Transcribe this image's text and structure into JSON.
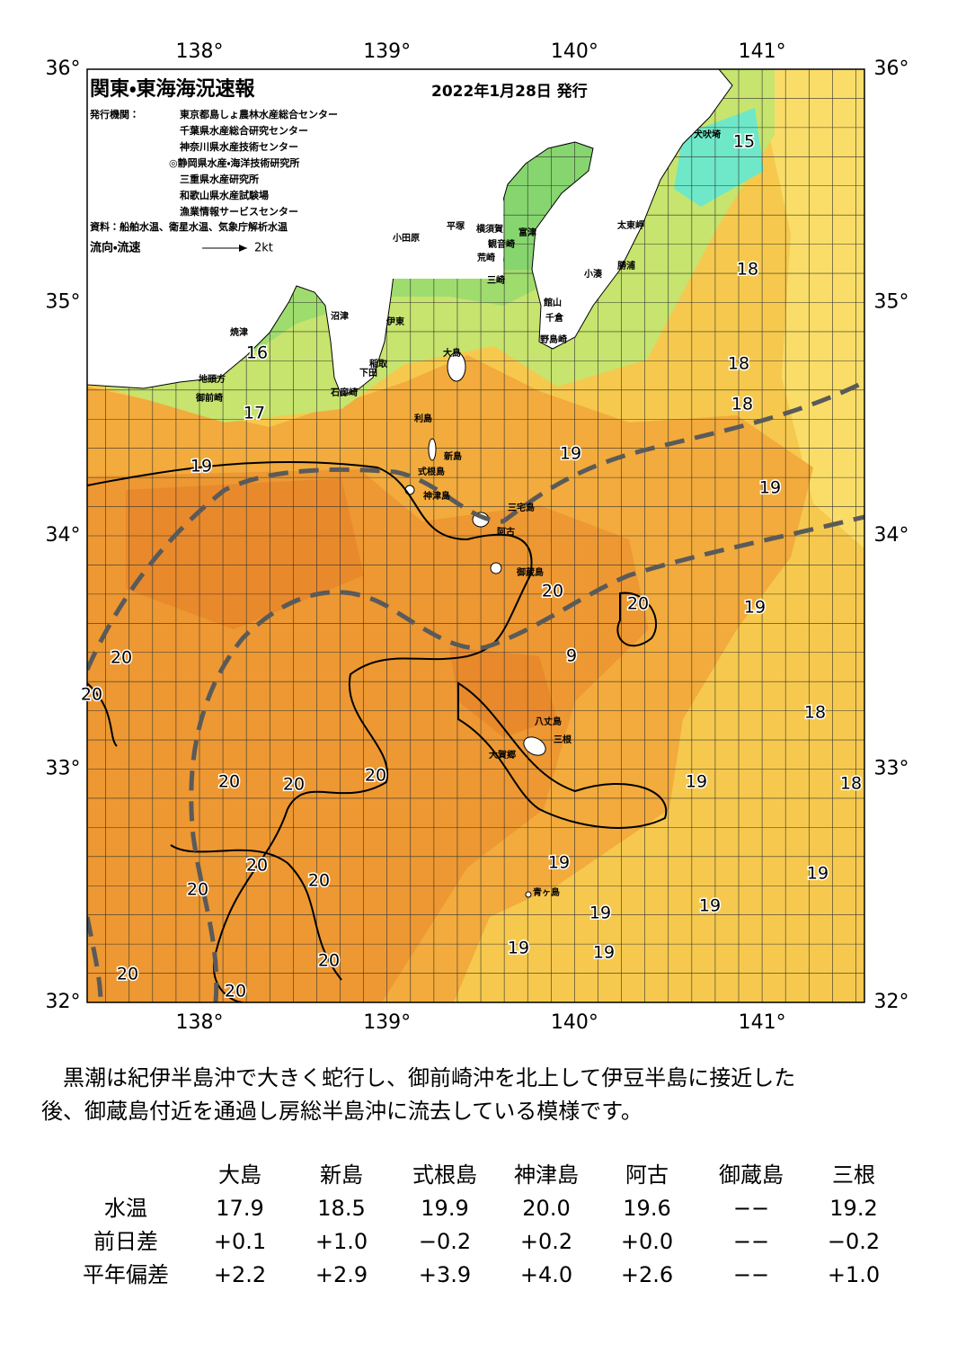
{
  "header": {
    "title": "関東・東海海況速報",
    "date": "2022年1月28日 発行",
    "issuer_label": "発行機関：",
    "issuers": [
      "東京都島しょ農林水産総合センター",
      "千葉県水産総合研究センター",
      "神奈川県水産技術センター",
      "◎静岡県水産・海洋技術研究所",
      "三重県水産研究所",
      "和歌山県水産試験場",
      "漁業情報サービスセンター"
    ],
    "source": "資料：船舶水温、衛星水温、気象庁解析水温",
    "legend_label": "流向・流速",
    "legend_speed": "2kt"
  },
  "map": {
    "lon_labels": [
      "138°",
      "139°",
      "140°",
      "141°"
    ],
    "lat_labels": [
      "36°",
      "35°",
      "34°",
      "33°",
      "32°"
    ],
    "temperature_labels": [
      "15",
      "16",
      "17",
      "18",
      "18",
      "18",
      "19",
      "19",
      "19",
      "20",
      "20",
      "19",
      "20",
      "9",
      "20",
      "18",
      "19",
      "18",
      "20",
      "20",
      "20",
      "20",
      "20",
      "20",
      "19",
      "19",
      "19",
      "19",
      "19",
      "19",
      "20",
      "20",
      "20"
    ],
    "places": [
      "犬吠埼",
      "太東岬",
      "勝浦",
      "小湊",
      "館山",
      "千倉",
      "野島崎",
      "富津",
      "観音崎",
      "横須賀",
      "平塚",
      "小田原",
      "荒崎",
      "三崎",
      "沼津",
      "伊東",
      "焼津",
      "稲取",
      "下田",
      "石廊崎",
      "地頭方",
      "御前崎",
      "大島",
      "利島",
      "新島",
      "式根島",
      "神津島",
      "三宅島",
      "阿古",
      "御蔵島",
      "八丈島",
      "三根",
      "大賀郷",
      "青ヶ島"
    ]
  },
  "description": [
    "　黒潮は紀伊半島沖で大きく蛇行し、御前崎沖を北上して伊豆半島に接近した",
    "後、御蔵島付近を通過し房総半島沖に流去している模様です。"
  ],
  "table": {
    "columns": [
      "大島",
      "新島",
      "式根島",
      "神津島",
      "阿古",
      "御蔵島",
      "三根"
    ],
    "rows": [
      {
        "label": "水温",
        "cells": [
          "17.9",
          "18.5",
          "19.9",
          "20.0",
          "19.6",
          "−−",
          "19.2"
        ]
      },
      {
        "label": "前日差",
        "cells": [
          "+0.1",
          "+1.0",
          "−0.2",
          "+0.2",
          "+0.0",
          "−−",
          "−0.2"
        ]
      },
      {
        "label": "平年偏差",
        "cells": [
          "+2.2",
          "+2.9",
          "+3.9",
          "+4.0",
          "+2.6",
          "−−",
          "+1.0"
        ]
      }
    ]
  }
}
